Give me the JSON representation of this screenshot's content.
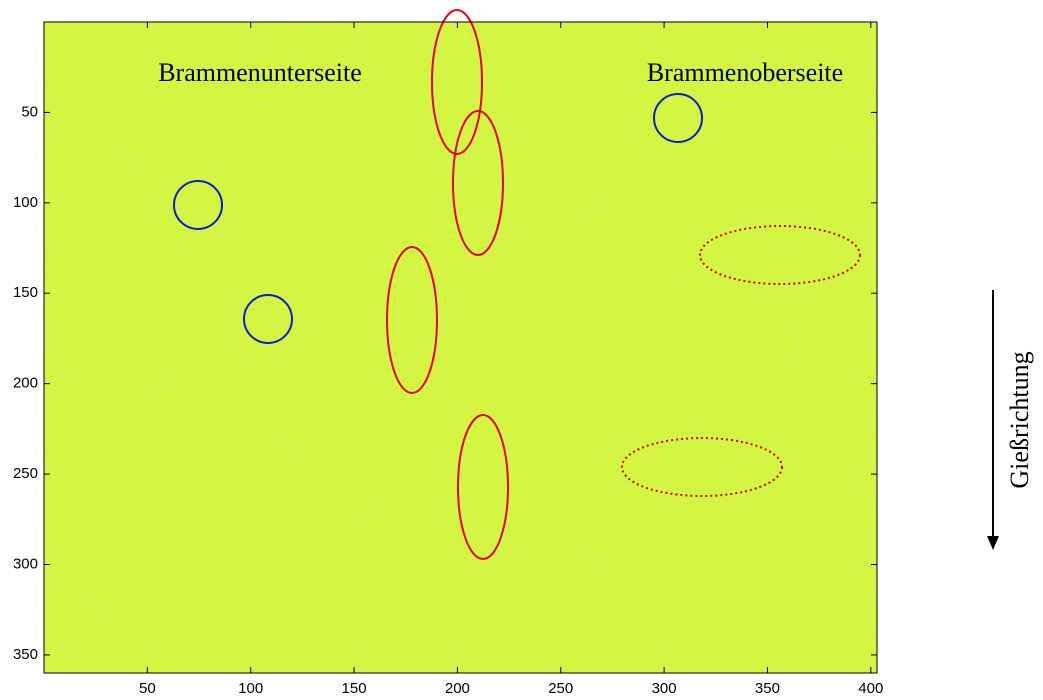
{
  "chart_data": {
    "type": "image",
    "annotations": [
      "Brammenunterseite",
      "Brammenoberseite",
      "Gießrichtung"
    ],
    "xlim": [
      0,
      403
    ],
    "xticks": [
      50,
      100,
      150,
      200,
      250,
      300,
      350,
      400
    ],
    "ylim": [
      360,
      0
    ],
    "yticks": [
      50,
      100,
      150,
      200,
      250,
      300,
      350
    ]
  }
}
